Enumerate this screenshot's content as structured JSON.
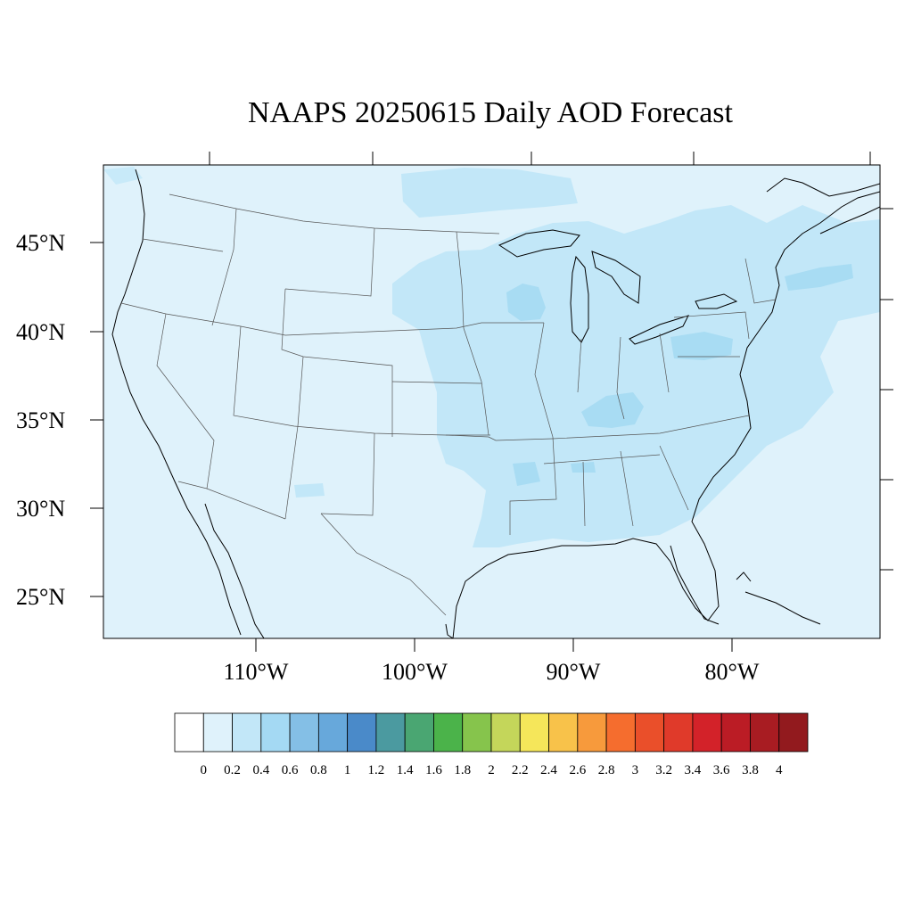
{
  "title": "NAAPS 20250615 Daily AOD Forecast",
  "map": {
    "region": "Continental United States",
    "lon_range": [
      -119,
      -70.5
    ],
    "lat_range": [
      22.5,
      49.5
    ],
    "lat_labels": [
      "45°N",
      "40°N",
      "35°N",
      "30°N",
      "25°N"
    ],
    "lat_values": [
      45,
      40,
      35,
      30,
      25
    ],
    "lon_labels": [
      "110°W",
      "100°W",
      "90°W",
      "80°W"
    ],
    "lon_values": [
      -110,
      -100,
      -90,
      -80
    ],
    "background_color": "#dff2fb",
    "coastline_color": "#000000"
  },
  "aod_regions": [
    {
      "level": "0.2-0.4",
      "color": "#c2e7f8",
      "area": "Great Plains / Midwest / Mississippi Valley"
    },
    {
      "level": "0.2-0.4",
      "color": "#c2e7f8",
      "area": "Northeast / Atlantic offshore"
    },
    {
      "level": "0.2-0.4",
      "color": "#c2e7f8",
      "area": "Southern Canada near Lake Superior"
    },
    {
      "level": "0.4-0.6",
      "color": "#a8dcf3",
      "area": "Wisconsin"
    },
    {
      "level": "0.4-0.6",
      "color": "#a8dcf3",
      "area": "Kentucky"
    },
    {
      "level": "0.4-0.6",
      "color": "#a8dcf3",
      "area": "Pennsylvania / Ohio"
    },
    {
      "level": "0.4-0.6",
      "color": "#a8dcf3",
      "area": "Atlantic offshore of New England"
    }
  ],
  "colorbar": {
    "labels": [
      "0",
      "0.2",
      "0.4",
      "0.6",
      "0.8",
      "1",
      "1.2",
      "1.4",
      "1.6",
      "1.8",
      "2",
      "2.2",
      "2.4",
      "2.6",
      "2.8",
      "3",
      "3.2",
      "3.4",
      "3.6",
      "3.8",
      "4"
    ],
    "colors": [
      "#ffffff",
      "#dff2fb",
      "#c2e7f8",
      "#a4d9f3",
      "#84bfe6",
      "#67a8db",
      "#4a8ac9",
      "#4b9aa0",
      "#4aa672",
      "#4bb34a",
      "#86c44c",
      "#c4d65a",
      "#f5e65a",
      "#f8c24a",
      "#f79a3c",
      "#f56d2e",
      "#ea4f2a",
      "#e03a2a",
      "#d32229",
      "#bb1c25",
      "#a81c22",
      "#921a1e"
    ]
  }
}
